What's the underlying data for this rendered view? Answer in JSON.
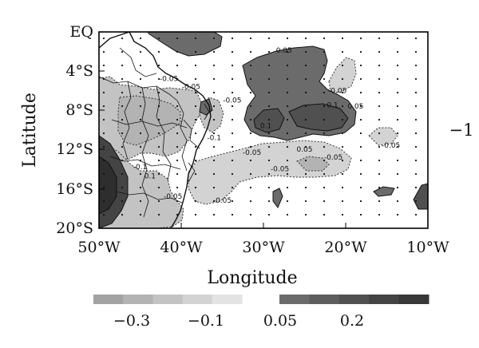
{
  "figure": {
    "y_axis_label": "Latitude",
    "x_axis_label": "Longitude",
    "panel_marker": "−1",
    "y_tick_labels": [
      "EQ",
      "4°S",
      "8°S",
      "12°S",
      "16°S",
      "20°S"
    ],
    "x_tick_labels": [
      "50°W",
      "40°W",
      "30°W",
      "20°W",
      "10°W"
    ],
    "lat_range": [
      -20,
      0
    ],
    "lon_range": [
      -50,
      -10
    ]
  },
  "colorbar": {
    "negative_swatch_colors": [
      "#a3a3a3",
      "#b3b3b3",
      "#c3c3c3",
      "#d3d3d3",
      "#e3e3e3"
    ],
    "positive_swatch_colors": [
      "#6b6b6b",
      "#5d5d5d",
      "#505050",
      "#444444",
      "#383838"
    ],
    "tick_labels": [
      "−0.3",
      "−0.1",
      "0.05",
      "0.2"
    ]
  },
  "contour_labels": [
    {
      "text": "0.05",
      "lon": -27.5,
      "lat": -2.1
    },
    {
      "text": "-0.05",
      "lon": -41.5,
      "lat": -5.0
    },
    {
      "text": "-0.05",
      "lon": -38.8,
      "lat": -5.8
    },
    {
      "text": "-0.05",
      "lon": -33.8,
      "lat": -7.2
    },
    {
      "text": "-0.05",
      "lon": -21.0,
      "lat": -6.2
    },
    {
      "text": "0.1",
      "lon": -21.6,
      "lat": -7.7
    },
    {
      "text": "0.05",
      "lon": -18.8,
      "lat": -7.8
    },
    {
      "text": "0.1",
      "lon": -29.7,
      "lat": -9.8
    },
    {
      "text": "-0.1",
      "lon": -36.0,
      "lat": -11.0
    },
    {
      "text": "-0.05",
      "lon": -31.4,
      "lat": -12.5
    },
    {
      "text": "0.05",
      "lon": -25.0,
      "lat": -12.2
    },
    {
      "text": "-0.05",
      "lon": -21.5,
      "lat": -13.0
    },
    {
      "text": "-0.05",
      "lon": -14.5,
      "lat": -11.8
    },
    {
      "text": "-0.05",
      "lon": -28.0,
      "lat": -14.2
    },
    {
      "text": "-0.1",
      "lon": -45.0,
      "lat": -14.0
    },
    {
      "text": "0.1",
      "lon": -43.8,
      "lat": -14.9
    },
    {
      "text": "-0.05",
      "lon": -41.0,
      "lat": -17.0
    },
    {
      "text": "-0.05",
      "lon": -35.0,
      "lat": -17.4
    }
  ]
}
